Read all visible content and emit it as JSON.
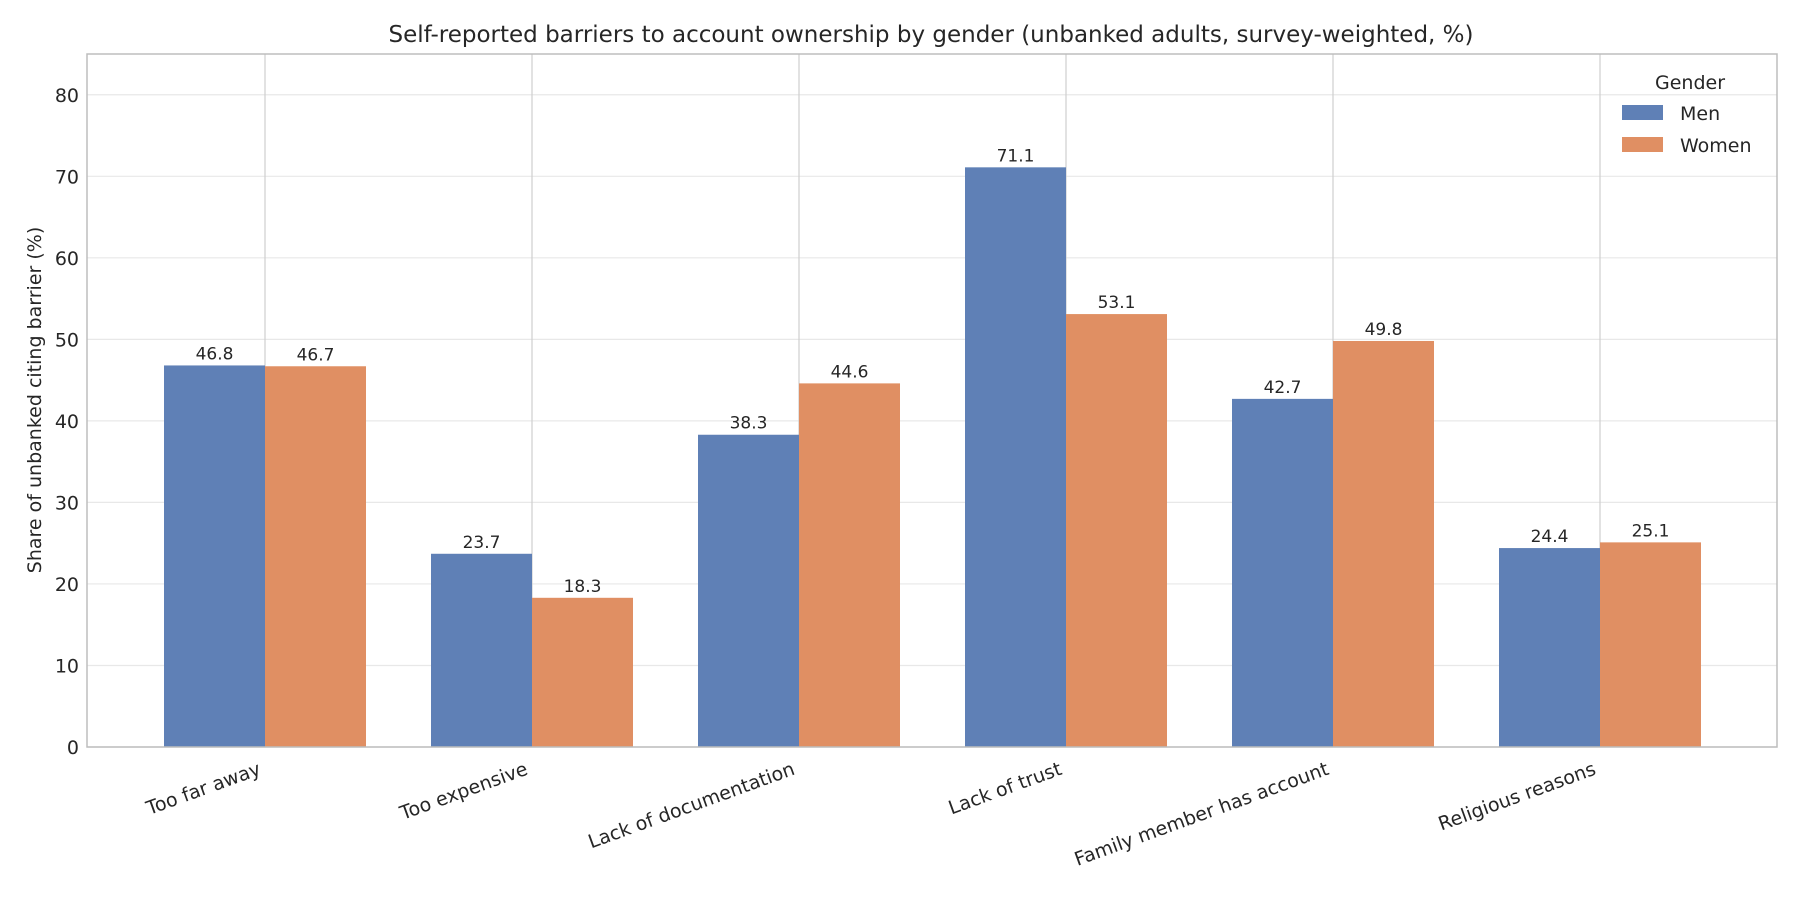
{
  "chart_data": {
    "type": "bar",
    "title": "Self-reported barriers to account ownership by gender (unbanked adults, survey-weighted, %)",
    "xlabel": "",
    "ylabel": "Share of unbanked citing barrier (%)",
    "ylim": [
      0,
      85
    ],
    "yticks": [
      0,
      10,
      20,
      30,
      40,
      50,
      60,
      70,
      80
    ],
    "grid": true,
    "legend": {
      "title": "Gender",
      "placement": "top-right"
    },
    "categories": [
      "Too far away",
      "Too expensive",
      "Lack of documentation",
      "Lack of trust",
      "Family member has account",
      "Religious reasons"
    ],
    "series": [
      {
        "name": "Men",
        "color": "#5f80b6",
        "values": [
          46.8,
          23.7,
          38.3,
          71.1,
          42.7,
          24.4
        ]
      },
      {
        "name": "Women",
        "color": "#e08f63",
        "values": [
          46.7,
          18.3,
          44.6,
          53.1,
          49.8,
          25.1
        ]
      }
    ]
  }
}
